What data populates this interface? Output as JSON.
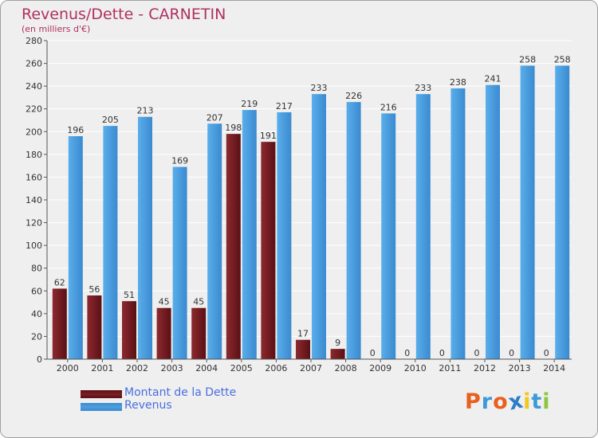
{
  "chart_data": {
    "type": "bar",
    "title": "Revenus/Dette - CARNETIN",
    "subtitle": "(en milliers d'€)",
    "categories": [
      "2000",
      "2001",
      "2002",
      "2003",
      "2004",
      "2005",
      "2006",
      "2007",
      "2008",
      "2009",
      "2010",
      "2011",
      "2012",
      "2013",
      "2014"
    ],
    "series": [
      {
        "name": "Montant de la Dette",
        "color": "#7a1f24",
        "values": [
          62,
          56,
          51,
          45,
          45,
          198,
          191,
          17,
          9,
          0,
          0,
          0,
          0,
          0,
          0
        ]
      },
      {
        "name": "Revenus",
        "color": "#4d9fe0",
        "values": [
          196,
          205,
          213,
          169,
          207,
          219,
          217,
          233,
          226,
          216,
          233,
          238,
          241,
          258,
          258
        ]
      }
    ],
    "value_labels": {
      "Montant de la Dette": [
        "62",
        "56",
        "51",
        "45",
        "45",
        "198",
        "191",
        "17",
        "9",
        "0",
        "0",
        "0",
        "0",
        "0",
        "0"
      ],
      "Revenus": [
        "196",
        "205",
        "213",
        "169",
        "207",
        "219",
        "217",
        "233",
        "226",
        "216",
        "233",
        "238",
        "241",
        "258",
        "258"
      ]
    },
    "y_ticks": [
      0,
      20,
      40,
      60,
      80,
      100,
      120,
      140,
      160,
      180,
      200,
      220,
      240,
      260,
      280
    ],
    "ylim": [
      0,
      280
    ],
    "grid": true,
    "xlabel": "",
    "ylabel": ""
  },
  "legend": {
    "dette_label": "Montant de la Dette",
    "revenus_label": "Revenus"
  },
  "logo": {
    "letters": [
      "P",
      "r",
      "o",
      "x",
      "i",
      "t",
      "i"
    ],
    "colors": [
      "#e85f1e",
      "#3d9ad8",
      "#e85f1e",
      "#2c7ec9",
      "#f2c81c",
      "#3d9ad8",
      "#8cc63f"
    ]
  }
}
